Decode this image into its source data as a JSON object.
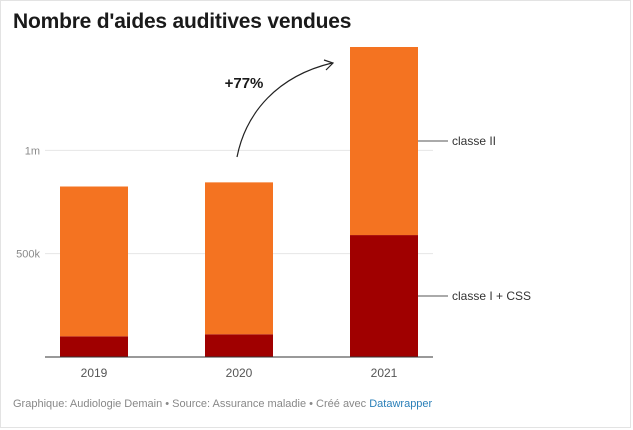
{
  "title": "Nombre d'aides auditives vendues",
  "footer": {
    "text": "Graphique: Audiologie Demain • Source: Assurance maladie • Créé avec ",
    "link": "Datawrapper"
  },
  "annotation": "+77%",
  "chart_data": {
    "type": "bar",
    "stacked": true,
    "categories": [
      "2019",
      "2020",
      "2021"
    ],
    "series": [
      {
        "name": "classe I + CSS",
        "values": [
          100000,
          110000,
          590000
        ],
        "color": "#a00000"
      },
      {
        "name": "classe II",
        "values": [
          725000,
          735000,
          910000
        ],
        "color": "#f47321"
      }
    ],
    "ylim": [
      0,
      1500000
    ],
    "yticks": [
      {
        "value": 500000,
        "label": "500k"
      },
      {
        "value": 1000000,
        "label": "1m"
      }
    ],
    "grid": true,
    "legend": "right",
    "xlabel": "",
    "ylabel": ""
  }
}
